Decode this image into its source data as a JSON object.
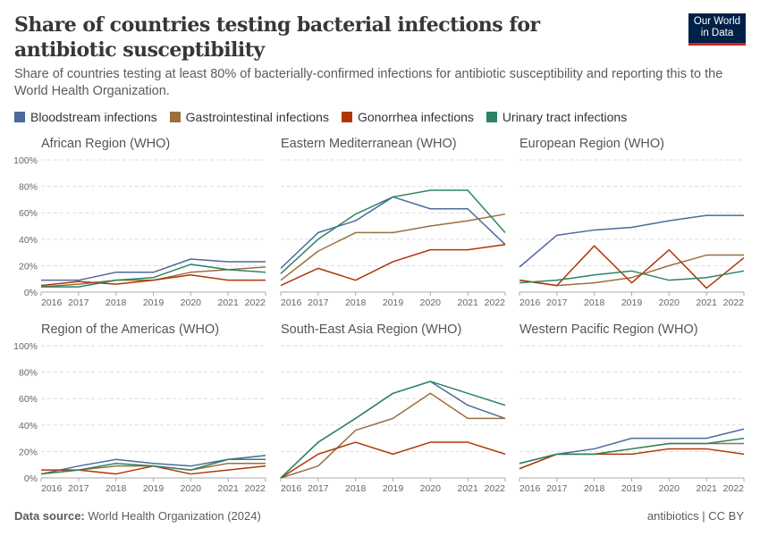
{
  "header": {
    "title": "Share of countries testing bacterial infections for antibiotic susceptibility",
    "subtitle": "Share of countries testing at least 80% of bacterially-confirmed infections for antibiotic susceptibility and reporting this to the World Health Organization.",
    "logo_text": "Our World in Data"
  },
  "footer": {
    "source_label": "Data source:",
    "source": "World Health Organization (2024)",
    "license": "antibiotics | CC BY"
  },
  "legend": [
    {
      "name": "Bloodstream infections",
      "color": "#4C6A9C"
    },
    {
      "name": "Gastrointestinal infections",
      "color": "#9A6F3D"
    },
    {
      "name": "Gonorrhea infections",
      "color": "#B13507"
    },
    {
      "name": "Urinary tract infections",
      "color": "#2C8465"
    }
  ],
  "chart_data": {
    "type": "line",
    "layout": "small-multiples",
    "x": [
      2016,
      2017,
      2018,
      2019,
      2020,
      2021,
      2022
    ],
    "y_ticks": [
      "0%",
      "20%",
      "40%",
      "60%",
      "80%",
      "100%"
    ],
    "ylim": [
      0,
      100
    ],
    "grid": "horizontal dashed",
    "legend_placement": "top",
    "panels": [
      {
        "title": "African Region (WHO)",
        "series": [
          {
            "name": "Bloodstream infections",
            "values": [
              9,
              9,
              15,
              15,
              25,
              23,
              23
            ]
          },
          {
            "name": "Gastrointestinal infections",
            "values": [
              4,
              6,
              9,
              9,
              15,
              17,
              19
            ]
          },
          {
            "name": "Gonorrhea infections",
            "values": [
              5,
              8,
              6,
              9,
              13,
              9,
              9
            ]
          },
          {
            "name": "Urinary tract infections",
            "values": [
              4,
              4,
              9,
              11,
              21,
              17,
              15
            ]
          }
        ]
      },
      {
        "title": "Eastern Mediterranean (WHO)",
        "series": [
          {
            "name": "Bloodstream infections",
            "values": [
              18,
              45,
              54,
              72,
              63,
              63,
              36
            ]
          },
          {
            "name": "Gastrointestinal infections",
            "values": [
              9,
              31,
              45,
              45,
              50,
              54,
              59
            ]
          },
          {
            "name": "Gonorrhea infections",
            "values": [
              5,
              18,
              9,
              23,
              32,
              32,
              36
            ]
          },
          {
            "name": "Urinary tract infections",
            "values": [
              14,
              40,
              59,
              72,
              77,
              77,
              45
            ]
          }
        ]
      },
      {
        "title": "European Region (WHO)",
        "series": [
          {
            "name": "Bloodstream infections",
            "values": [
              19,
              43,
              47,
              49,
              54,
              58,
              58
            ]
          },
          {
            "name": "Gastrointestinal infections",
            "values": [
              9,
              5,
              7,
              11,
              20,
              28,
              28
            ]
          },
          {
            "name": "Gonorrhea infections",
            "values": [
              9,
              5,
              35,
              7,
              32,
              3,
              26
            ]
          },
          {
            "name": "Urinary tract infections",
            "values": [
              7,
              9,
              13,
              16,
              9,
              11,
              16
            ]
          }
        ]
      },
      {
        "title": "Region of the Americas (WHO)",
        "series": [
          {
            "name": "Bloodstream infections",
            "values": [
              3,
              9,
              14,
              11,
              9,
              14,
              17
            ]
          },
          {
            "name": "Gastrointestinal infections",
            "values": [
              3,
              6,
              9,
              9,
              6,
              11,
              11
            ]
          },
          {
            "name": "Gonorrhea infections",
            "values": [
              6,
              6,
              3,
              9,
              3,
              6,
              9
            ]
          },
          {
            "name": "Urinary tract infections",
            "values": [
              3,
              6,
              11,
              9,
              6,
              14,
              14
            ]
          }
        ]
      },
      {
        "title": "South-East Asia Region (WHO)",
        "series": [
          {
            "name": "Bloodstream infections",
            "values": [
              0,
              27,
              45,
              64,
              73,
              55,
              45
            ]
          },
          {
            "name": "Gastrointestinal infections",
            "values": [
              0,
              9,
              36,
              45,
              64,
              45,
              45
            ]
          },
          {
            "name": "Gonorrhea infections",
            "values": [
              0,
              18,
              27,
              18,
              27,
              27,
              18
            ]
          },
          {
            "name": "Urinary tract infections",
            "values": [
              0,
              27,
              45,
              64,
              73,
              64,
              55
            ]
          }
        ]
      },
      {
        "title": "Western Pacific Region (WHO)",
        "series": [
          {
            "name": "Bloodstream infections",
            "values": [
              11,
              18,
              22,
              30,
              30,
              30,
              37
            ]
          },
          {
            "name": "Gastrointestinal infections",
            "values": [
              7,
              18,
              18,
              22,
              26,
              26,
              26
            ]
          },
          {
            "name": "Gonorrhea infections",
            "values": [
              7,
              18,
              18,
              18,
              22,
              22,
              18
            ]
          },
          {
            "name": "Urinary tract infections",
            "values": [
              11,
              18,
              18,
              22,
              26,
              26,
              30
            ]
          }
        ]
      }
    ]
  }
}
